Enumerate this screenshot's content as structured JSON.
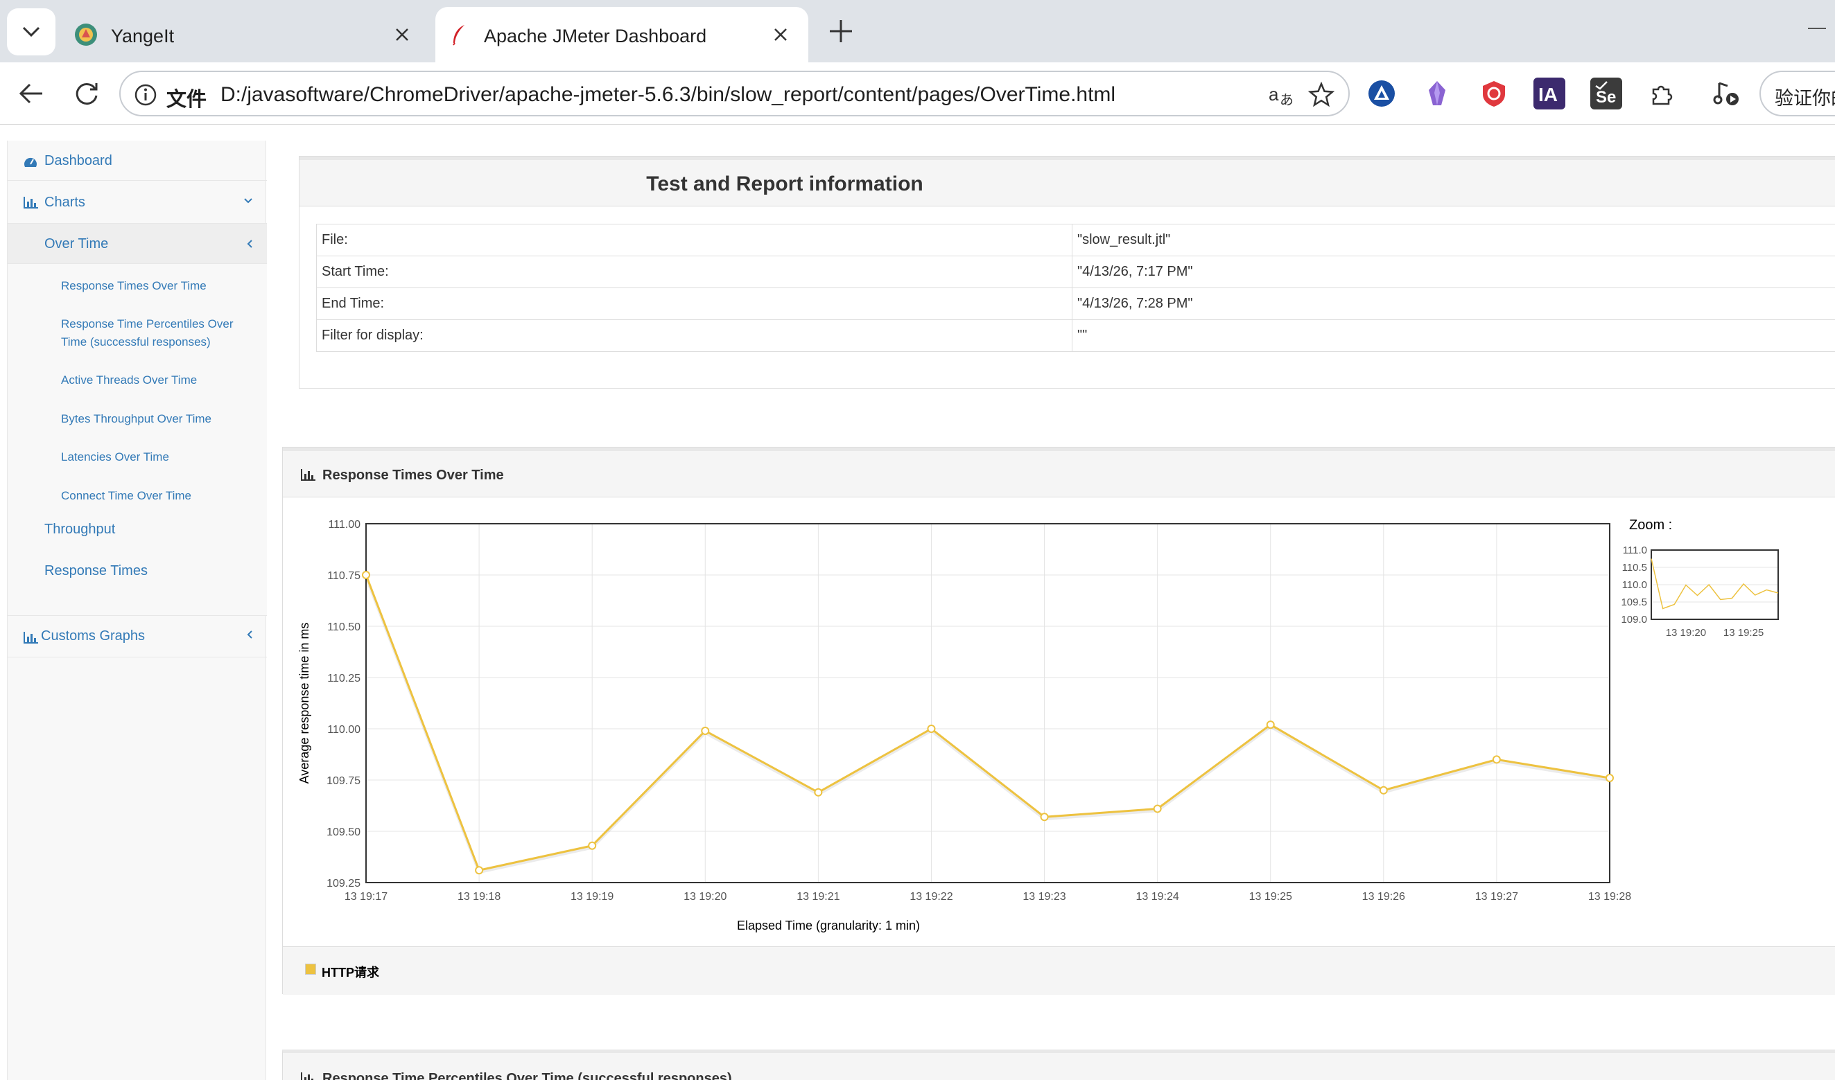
{
  "browser": {
    "tabs": [
      {
        "title": "YangeIt",
        "favicon": "yangeit-icon"
      },
      {
        "title": "Apache JMeter Dashboard",
        "favicon": "feather-icon"
      }
    ],
    "omnibox": {
      "scheme_label": "文件",
      "url": "D:/javasoftware/ChromeDriver/apache-jmeter-5.6.3/bin/slow_report/content/pages/OverTime.html"
    },
    "verify_button": "验证你的"
  },
  "sidebar": {
    "dashboard": "Dashboard",
    "charts": "Charts",
    "over_time": "Over Time",
    "over_time_items": [
      "Response Times Over Time",
      "Response Time Percentiles Over Time (successful responses)",
      "Active Threads Over Time",
      "Bytes Throughput Over Time",
      "Latencies Over Time",
      "Connect Time Over Time"
    ],
    "throughput": "Throughput",
    "response_times": "Response Times",
    "customs_graphs": "Customs Graphs"
  },
  "info": {
    "title": "Test and Report information",
    "rows": [
      {
        "key": "File:",
        "value": "\"slow_result.jtl\""
      },
      {
        "key": "Start Time:",
        "value": "\"4/13/26, 7:17 PM\""
      },
      {
        "key": "End Time:",
        "value": "\"4/13/26, 7:28 PM\""
      },
      {
        "key": "Filter for display:",
        "value": "\"\""
      }
    ]
  },
  "chart_panel": {
    "title": "Response Times Over Time",
    "zoom_label": "Zoom :",
    "legend": "HTTP请求"
  },
  "next_panel": {
    "title": "Response Time Percentiles Over Time (successful responses)"
  },
  "chart_data": {
    "type": "line",
    "title": "Response Times Over Time",
    "xlabel": "Elapsed Time (granularity: 1 min)",
    "ylabel": "Average response time in ms",
    "x": [
      "13 19:17",
      "13 19:18",
      "13 19:19",
      "13 19:20",
      "13 19:21",
      "13 19:22",
      "13 19:23",
      "13 19:24",
      "13 19:25",
      "13 19:26",
      "13 19:27",
      "13 19:28"
    ],
    "ylim": [
      109.25,
      111.0
    ],
    "yticks": [
      "109.25",
      "109.50",
      "109.75",
      "110.00",
      "110.25",
      "110.50",
      "110.75",
      "111.00"
    ],
    "series": [
      {
        "name": "HTTP请求",
        "color": "#edc240",
        "values": [
          110.75,
          109.31,
          109.43,
          109.99,
          109.69,
          110.0,
          109.57,
          109.61,
          110.02,
          109.7,
          109.85,
          109.76
        ]
      }
    ],
    "zoom": {
      "ylim": [
        109.0,
        111.0
      ],
      "yticks": [
        "109.0",
        "109.5",
        "110.0",
        "110.5",
        "111.0"
      ],
      "xticks": [
        "13 19:20",
        "13 19:25"
      ]
    },
    "grid": true,
    "legend": "bottom-left"
  }
}
